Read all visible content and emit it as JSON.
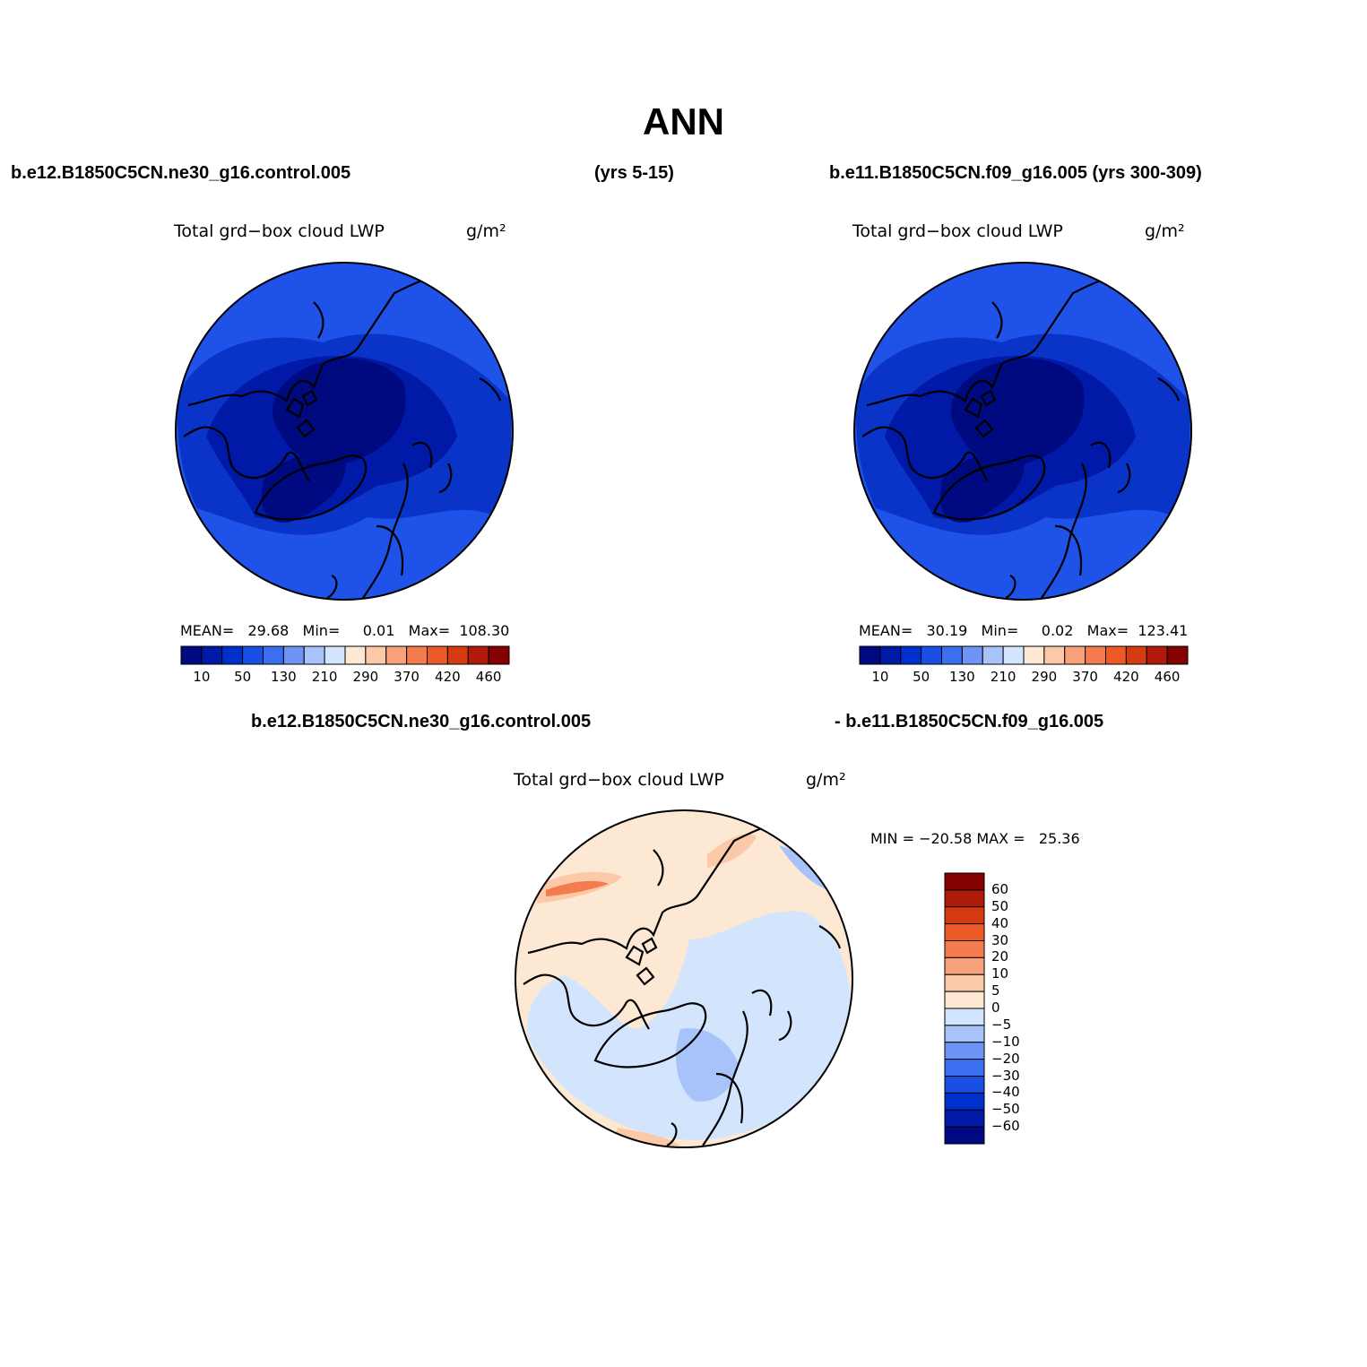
{
  "title": "ANN",
  "top_left": {
    "case_name": "b.e12.B1850C5CN.ne30_g16.control.005",
    "years": "(yrs 5-15)",
    "variable": "Total grd−box cloud LWP",
    "units": "g/m²",
    "stats": "MEAN=   29.68   Min=     0.01   Max=  108.30"
  },
  "top_right": {
    "case_name": "b.e11.B1850C5CN.f09_g16.005 (yrs 300-309)",
    "variable": "Total grd−box cloud LWP",
    "units": "g/m²",
    "stats": "MEAN=   30.19   Min=     0.02   Max=  123.41"
  },
  "bottom": {
    "case_a": "b.e12.B1850C5CN.ne30_g16.control.005",
    "case_b": "- b.e11.B1850C5CN.f09_g16.005",
    "variable": "Total grd−box cloud LWP",
    "units": "g/m²",
    "stats": "MIN = −20.58 MAX =   25.36"
  },
  "colorbar_abs": {
    "colors": [
      "#000a80",
      "#0019a6",
      "#0030cc",
      "#1a4fe6",
      "#3a6ff0",
      "#6e95f5",
      "#a8c3fa",
      "#d2e5fd",
      "#fde8d4",
      "#fbc9a8",
      "#f7a27a",
      "#f47b4d",
      "#ee5a27",
      "#d63a10",
      "#b01a0a",
      "#850000"
    ],
    "tick_labels": [
      "10",
      "50",
      "130",
      "210",
      "290",
      "370",
      "420",
      "460"
    ]
  },
  "colorbar_diff": {
    "colors": [
      "#850000",
      "#b01a0a",
      "#d63a10",
      "#ee5a27",
      "#f47b4d",
      "#f7a27a",
      "#fbc9a8",
      "#fde8d4",
      "#d2e5fd",
      "#a8c3fa",
      "#6e95f5",
      "#3a6ff0",
      "#1a4fe6",
      "#0030cc",
      "#0019a6",
      "#000a80"
    ],
    "tick_labels": [
      "60",
      "50",
      "40",
      "30",
      "20",
      "10",
      "5",
      "0",
      "−5",
      "−10",
      "−20",
      "−30",
      "−40",
      "−50",
      "−60"
    ]
  },
  "colors": {
    "abs_background": "#1f52e8",
    "abs_mid": "#0a33c8",
    "abs_low": "#0019a6",
    "abs_lowest": "#000a80",
    "diff_background": "#fde8d4",
    "diff_negative": "#d2e5fd",
    "diff_negative_strong": "#a8c3fa",
    "diff_positive": "#fbc9a8",
    "diff_positive_strong": "#f47b4d"
  }
}
